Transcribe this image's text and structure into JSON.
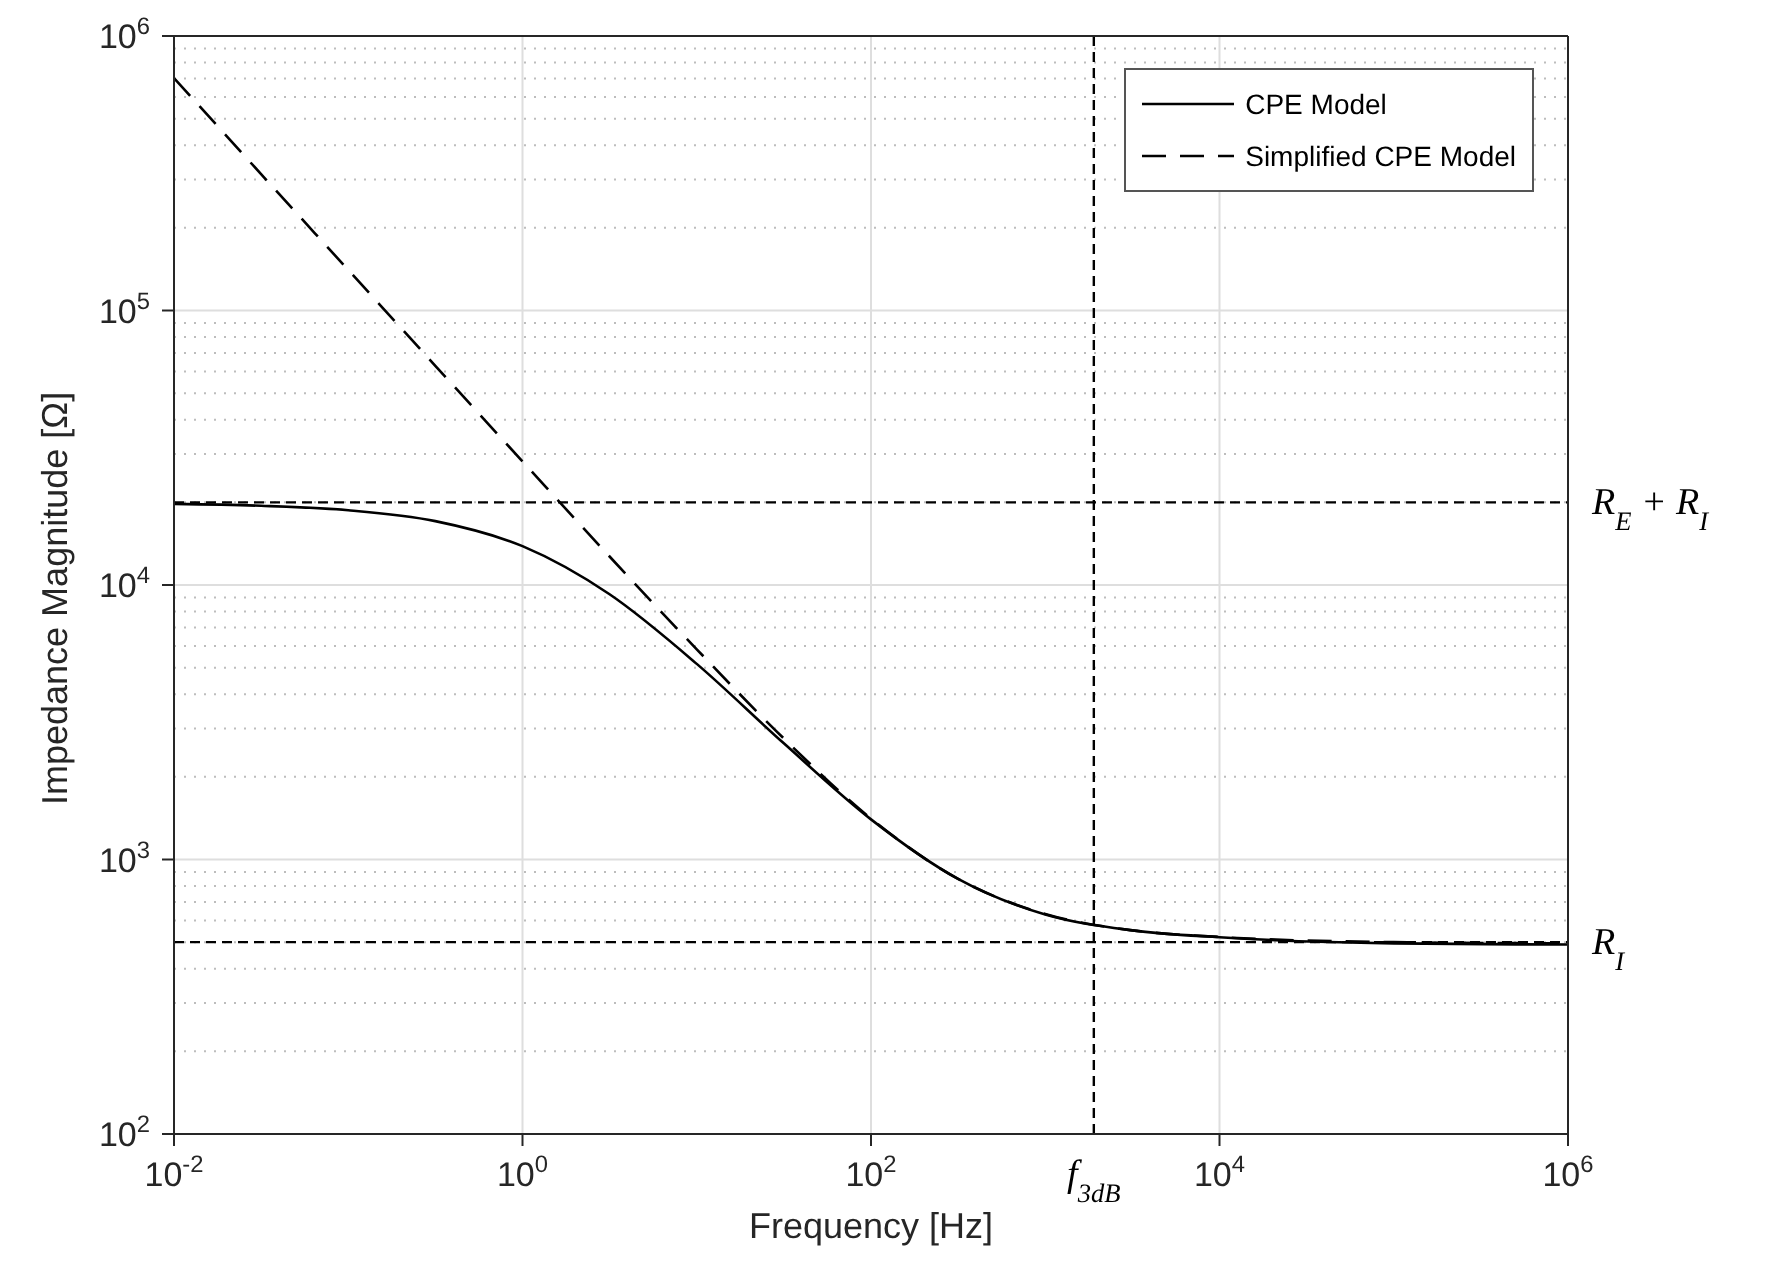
{
  "chart_data": {
    "type": "line",
    "xlabel": "Frequency [Hz]",
    "ylabel": "Impedance Magnitude [Ω]",
    "log": "xy",
    "xlim": [
      0.01,
      1000000
    ],
    "ylim": [
      100,
      1000000
    ],
    "xticks": [
      {
        "value": 0.01,
        "label": "10$^{-2}$"
      },
      {
        "value": 1,
        "label": "10$^{0}$"
      },
      {
        "value": 100,
        "label": "10$^{2}$"
      },
      {
        "value": 10000,
        "label": "10$^{4}$"
      },
      {
        "value": 1000000,
        "label": "10$^{6}$"
      }
    ],
    "yticks": [
      {
        "value": 100,
        "label": "10$^{2}$"
      },
      {
        "value": 1000,
        "label": "10$^{3}$"
      },
      {
        "value": 10000,
        "label": "10$^{4}$"
      },
      {
        "value": 100000,
        "label": "10$^{5}$"
      },
      {
        "value": 1000000,
        "label": "10$^{6}$"
      }
    ],
    "grid": true,
    "legend": "top right",
    "marker": "none",
    "series": [
      {
        "name": "CPE Model",
        "color": "#000000",
        "line_style": "solid",
        "x": [
          0.01,
          0.0316,
          0.1,
          0.316,
          1,
          3.16,
          10,
          31.6,
          100,
          316,
          1000,
          3162,
          10000,
          100000,
          1000000
        ],
        "values": [
          19750,
          19440,
          18720,
          17090,
          13850,
          9250,
          5160,
          2650,
          1400,
          850,
          630,
          552,
          521,
          495,
          490
        ]
      },
      {
        "name": "Simplified CPE Model",
        "color": "#000000",
        "line_style": "dashed",
        "x": [
          0.01,
          0.0316,
          0.1,
          0.316,
          1,
          3.16,
          10,
          31.6,
          100,
          316,
          1000,
          3162,
          10000,
          100000,
          1000000
        ],
        "values": [
          703000,
          314000,
          140500,
          62900,
          28200,
          12700,
          5830,
          2760,
          1410,
          850,
          633,
          552,
          522,
          500,
          495
        ]
      }
    ],
    "ref_lines": [
      {
        "axis": "y",
        "value": 20000,
        "label": "R$_{E}$ + R$_{I}$",
        "color": "#000000",
        "line_style": "dashed"
      },
      {
        "axis": "y",
        "value": 500,
        "label": "R$_{I}$",
        "color": "#000000",
        "line_style": "dashed"
      },
      {
        "axis": "x",
        "value": 1900,
        "label": "f$_{3dB}$",
        "color": "#000000",
        "line_style": "dashed"
      }
    ]
  }
}
